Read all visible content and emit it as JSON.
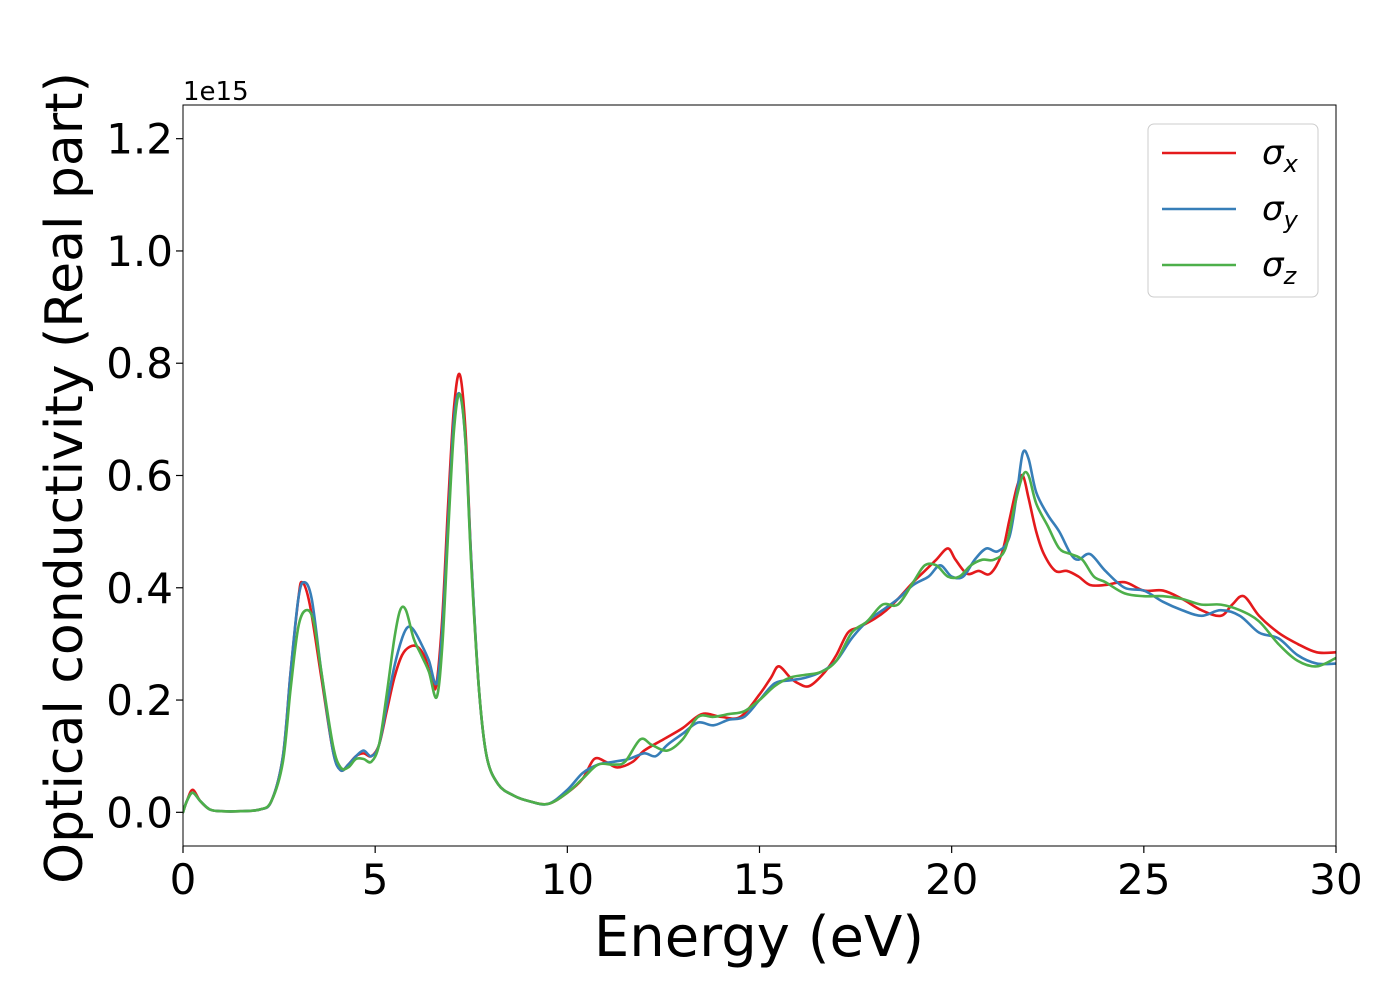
{
  "chart_data": {
    "type": "line",
    "title": "",
    "xlabel": "Energy (eV)",
    "ylabel": "Optical conductivity (Real part)",
    "offset_label": "1e15",
    "xlim": [
      0,
      30
    ],
    "ylim": [
      -0.06,
      1.26
    ],
    "xticks": [
      0,
      5,
      10,
      15,
      20,
      25,
      30
    ],
    "xtick_labels": [
      "0",
      "5",
      "10",
      "15",
      "20",
      "25",
      "30"
    ],
    "yticks": [
      0.0,
      0.2,
      0.4,
      0.6,
      0.8,
      1.0,
      1.2
    ],
    "ytick_labels": [
      "0.0",
      "0.2",
      "0.4",
      "0.6",
      "0.8",
      "1.0",
      "1.2"
    ],
    "grid": false,
    "legend_position": "top-right",
    "series": [
      {
        "name": "σ",
        "subscript": "x",
        "color": "#e41a1c",
        "x": [
          0,
          0.1,
          0.25,
          0.45,
          0.7,
          1,
          1.5,
          2,
          2.3,
          2.6,
          2.8,
          3,
          3.1,
          3.3,
          3.6,
          3.9,
          4.1,
          4.3,
          4.5,
          4.7,
          4.9,
          5.1,
          5.3,
          5.5,
          5.7,
          5.9,
          6.1,
          6.3,
          6.5,
          6.6,
          6.75,
          6.9,
          7.05,
          7.2,
          7.35,
          7.5,
          7.7,
          7.9,
          8.2,
          8.6,
          9,
          9.5,
          10,
          10.4,
          10.7,
          11,
          11.3,
          11.7,
          12,
          12.5,
          13,
          13.5,
          14,
          14.5,
          15,
          15.3,
          15.5,
          15.8,
          16,
          16.3,
          16.7,
          17,
          17.3,
          17.6,
          18,
          18.3,
          18.6,
          19,
          19.3,
          19.6,
          19.9,
          20.1,
          20.4,
          20.7,
          21,
          21.3,
          21.5,
          21.7,
          21.85,
          22,
          22.2,
          22.4,
          22.7,
          23,
          23.3,
          23.6,
          24,
          24.5,
          25,
          25.5,
          26,
          26.5,
          27,
          27.3,
          27.6,
          28,
          28.5,
          29,
          29.5,
          30
        ],
        "y": [
          0.0,
          0.02,
          0.04,
          0.02,
          0.005,
          0.002,
          0.002,
          0.005,
          0.02,
          0.1,
          0.25,
          0.38,
          0.41,
          0.37,
          0.24,
          0.11,
          0.075,
          0.085,
          0.1,
          0.105,
          0.1,
          0.12,
          0.18,
          0.24,
          0.28,
          0.295,
          0.295,
          0.275,
          0.23,
          0.23,
          0.35,
          0.55,
          0.72,
          0.78,
          0.68,
          0.45,
          0.22,
          0.1,
          0.05,
          0.03,
          0.02,
          0.015,
          0.035,
          0.06,
          0.095,
          0.09,
          0.08,
          0.09,
          0.11,
          0.13,
          0.15,
          0.175,
          0.17,
          0.17,
          0.21,
          0.24,
          0.26,
          0.24,
          0.23,
          0.225,
          0.25,
          0.28,
          0.32,
          0.33,
          0.345,
          0.36,
          0.38,
          0.41,
          0.43,
          0.45,
          0.47,
          0.45,
          0.425,
          0.43,
          0.425,
          0.46,
          0.52,
          0.58,
          0.6,
          0.56,
          0.5,
          0.46,
          0.43,
          0.43,
          0.42,
          0.405,
          0.405,
          0.41,
          0.395,
          0.395,
          0.38,
          0.36,
          0.35,
          0.37,
          0.385,
          0.35,
          0.32,
          0.3,
          0.285,
          0.285
        ]
      },
      {
        "name": "σ",
        "subscript": "y",
        "color": "#377eb8",
        "x": [
          0,
          0.1,
          0.25,
          0.45,
          0.7,
          1,
          1.5,
          2,
          2.3,
          2.6,
          2.8,
          3,
          3.15,
          3.35,
          3.6,
          3.9,
          4.1,
          4.3,
          4.5,
          4.7,
          4.9,
          5.1,
          5.3,
          5.5,
          5.7,
          5.85,
          6,
          6.2,
          6.4,
          6.6,
          6.75,
          6.9,
          7.05,
          7.2,
          7.35,
          7.5,
          7.7,
          7.9,
          8.2,
          8.6,
          9,
          9.5,
          10,
          10.4,
          10.8,
          11.2,
          11.6,
          12,
          12.3,
          12.6,
          13,
          13.4,
          13.8,
          14.2,
          14.6,
          15,
          15.4,
          15.8,
          16.2,
          16.6,
          17,
          17.4,
          17.8,
          18.2,
          18.6,
          19,
          19.4,
          19.7,
          20,
          20.3,
          20.6,
          20.9,
          21.2,
          21.5,
          21.7,
          21.85,
          22,
          22.2,
          22.5,
          22.8,
          23.1,
          23.3,
          23.6,
          24,
          24.5,
          25,
          25.5,
          26,
          26.5,
          27,
          27.5,
          28,
          28.5,
          29,
          29.5,
          30
        ],
        "y": [
          0.0,
          0.02,
          0.035,
          0.02,
          0.005,
          0.002,
          0.002,
          0.005,
          0.02,
          0.1,
          0.25,
          0.38,
          0.41,
          0.38,
          0.25,
          0.11,
          0.075,
          0.085,
          0.1,
          0.11,
          0.1,
          0.12,
          0.19,
          0.26,
          0.31,
          0.33,
          0.325,
          0.3,
          0.27,
          0.23,
          0.33,
          0.52,
          0.7,
          0.745,
          0.66,
          0.45,
          0.22,
          0.1,
          0.05,
          0.03,
          0.02,
          0.015,
          0.04,
          0.07,
          0.085,
          0.09,
          0.095,
          0.105,
          0.1,
          0.12,
          0.14,
          0.16,
          0.155,
          0.165,
          0.17,
          0.2,
          0.23,
          0.235,
          0.24,
          0.25,
          0.27,
          0.31,
          0.34,
          0.36,
          0.38,
          0.405,
          0.42,
          0.44,
          0.42,
          0.42,
          0.45,
          0.47,
          0.465,
          0.49,
          0.57,
          0.64,
          0.63,
          0.57,
          0.53,
          0.5,
          0.46,
          0.45,
          0.46,
          0.43,
          0.4,
          0.395,
          0.375,
          0.36,
          0.35,
          0.36,
          0.35,
          0.32,
          0.31,
          0.28,
          0.265,
          0.265
        ]
      },
      {
        "name": "σ",
        "subscript": "z",
        "color": "#4daf4a",
        "x": [
          0,
          0.1,
          0.25,
          0.45,
          0.7,
          1,
          1.5,
          2,
          2.3,
          2.6,
          2.8,
          3,
          3.2,
          3.4,
          3.6,
          3.9,
          4.1,
          4.3,
          4.5,
          4.7,
          4.9,
          5.1,
          5.3,
          5.5,
          5.65,
          5.8,
          6,
          6.2,
          6.4,
          6.6,
          6.75,
          6.9,
          7.05,
          7.2,
          7.35,
          7.5,
          7.7,
          7.9,
          8.2,
          8.6,
          9,
          9.5,
          10,
          10.4,
          10.8,
          11.2,
          11.5,
          11.9,
          12.2,
          12.6,
          13,
          13.4,
          13.8,
          14.2,
          14.6,
          15,
          15.4,
          15.8,
          16.2,
          16.6,
          17,
          17.4,
          17.8,
          18.2,
          18.6,
          19,
          19.3,
          19.6,
          19.9,
          20.2,
          20.5,
          20.8,
          21.1,
          21.4,
          21.65,
          21.85,
          22,
          22.2,
          22.5,
          22.8,
          23.1,
          23.4,
          23.7,
          24,
          24.5,
          25,
          25.5,
          26,
          26.5,
          27,
          27.5,
          28,
          28.5,
          29,
          29.5,
          30
        ],
        "y": [
          0.0,
          0.02,
          0.035,
          0.02,
          0.005,
          0.002,
          0.002,
          0.005,
          0.02,
          0.09,
          0.22,
          0.33,
          0.36,
          0.34,
          0.25,
          0.12,
          0.08,
          0.08,
          0.095,
          0.095,
          0.09,
          0.12,
          0.21,
          0.31,
          0.36,
          0.36,
          0.31,
          0.28,
          0.25,
          0.205,
          0.3,
          0.5,
          0.68,
          0.745,
          0.66,
          0.44,
          0.22,
          0.1,
          0.05,
          0.03,
          0.02,
          0.015,
          0.035,
          0.06,
          0.085,
          0.085,
          0.09,
          0.13,
          0.12,
          0.11,
          0.13,
          0.17,
          0.17,
          0.175,
          0.18,
          0.2,
          0.225,
          0.24,
          0.245,
          0.25,
          0.27,
          0.32,
          0.34,
          0.37,
          0.37,
          0.41,
          0.44,
          0.44,
          0.42,
          0.42,
          0.44,
          0.45,
          0.45,
          0.47,
          0.55,
          0.6,
          0.6,
          0.55,
          0.51,
          0.47,
          0.46,
          0.45,
          0.42,
          0.41,
          0.39,
          0.385,
          0.385,
          0.38,
          0.37,
          0.37,
          0.36,
          0.34,
          0.3,
          0.27,
          0.26,
          0.275
        ]
      }
    ]
  }
}
